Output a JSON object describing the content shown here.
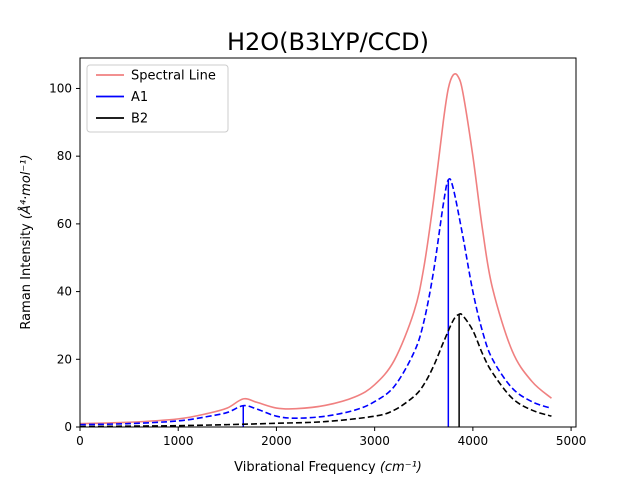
{
  "chart_data": {
    "type": "line",
    "title": "H2O(B3LYP/CCD)",
    "xlabel": "Vibrational Frequency",
    "xlabel_unit": "(cm⁻¹)",
    "ylabel": "Raman Intensity",
    "ylabel_unit": "(Å⁴·mol⁻¹)",
    "xlim": [
      0,
      5050
    ],
    "ylim": [
      0,
      109
    ],
    "xticks": [
      0,
      1000,
      2000,
      3000,
      4000,
      5000
    ],
    "yticks": [
      0,
      20,
      40,
      60,
      80,
      100
    ],
    "legend_position": "top-left",
    "grid": false,
    "peaks": [
      {
        "mode": "A1",
        "freq": 1662,
        "intensity": 6.3
      },
      {
        "mode": "A1",
        "freq": 3750,
        "intensity": 73.0
      },
      {
        "mode": "B2",
        "freq": 3860,
        "intensity": 33.3
      }
    ],
    "series": [
      {
        "name": "Spectral Line",
        "color": "#f08080",
        "style": "solid",
        "x": [
          0,
          500,
          1000,
          1300,
          1500,
          1662,
          1800,
          2000,
          2200,
          2500,
          2800,
          3000,
          3200,
          3400,
          3500,
          3600,
          3700,
          3750,
          3800,
          3850,
          3900,
          4000,
          4100,
          4200,
          4400,
          4600,
          4800
        ],
        "y": [
          1.0,
          1.4,
          2.4,
          4.0,
          5.6,
          8.3,
          7.3,
          5.6,
          5.4,
          6.4,
          8.9,
          12.5,
          19.7,
          34.0,
          47.0,
          67.0,
          90.5,
          100.0,
          104.0,
          103.5,
          98.5,
          80.0,
          58.0,
          41.0,
          22.5,
          13.5,
          8.5
        ]
      },
      {
        "name": "A1",
        "color": "#0000ff",
        "style": "dashed",
        "x": [
          0,
          500,
          1000,
          1300,
          1500,
          1662,
          1800,
          2000,
          2200,
          2500,
          2800,
          3000,
          3200,
          3400,
          3500,
          3600,
          3700,
          3750,
          3800,
          3900,
          4000,
          4100,
          4200,
          4400,
          4600,
          4800
        ],
        "y": [
          0.7,
          1.0,
          1.8,
          3.1,
          4.3,
          6.3,
          5.3,
          3.2,
          2.6,
          3.2,
          5.0,
          7.5,
          12.0,
          22.0,
          31.0,
          46.0,
          66.0,
          73.0,
          70.5,
          56.0,
          40.0,
          28.0,
          20.0,
          11.5,
          7.5,
          5.5
        ]
      },
      {
        "name": "B2",
        "color": "#000000",
        "style": "dashed",
        "x": [
          0,
          500,
          1000,
          1500,
          2000,
          2500,
          3000,
          3200,
          3400,
          3500,
          3600,
          3700,
          3800,
          3860,
          3900,
          4000,
          4100,
          4200,
          4400,
          4600,
          4800
        ],
        "y": [
          0.15,
          0.25,
          0.4,
          0.7,
          1.1,
          1.6,
          3.2,
          5.0,
          9.0,
          12.5,
          18.0,
          25.0,
          31.5,
          33.3,
          32.8,
          28.5,
          21.5,
          16.0,
          8.5,
          5.0,
          3.2
        ]
      }
    ]
  }
}
